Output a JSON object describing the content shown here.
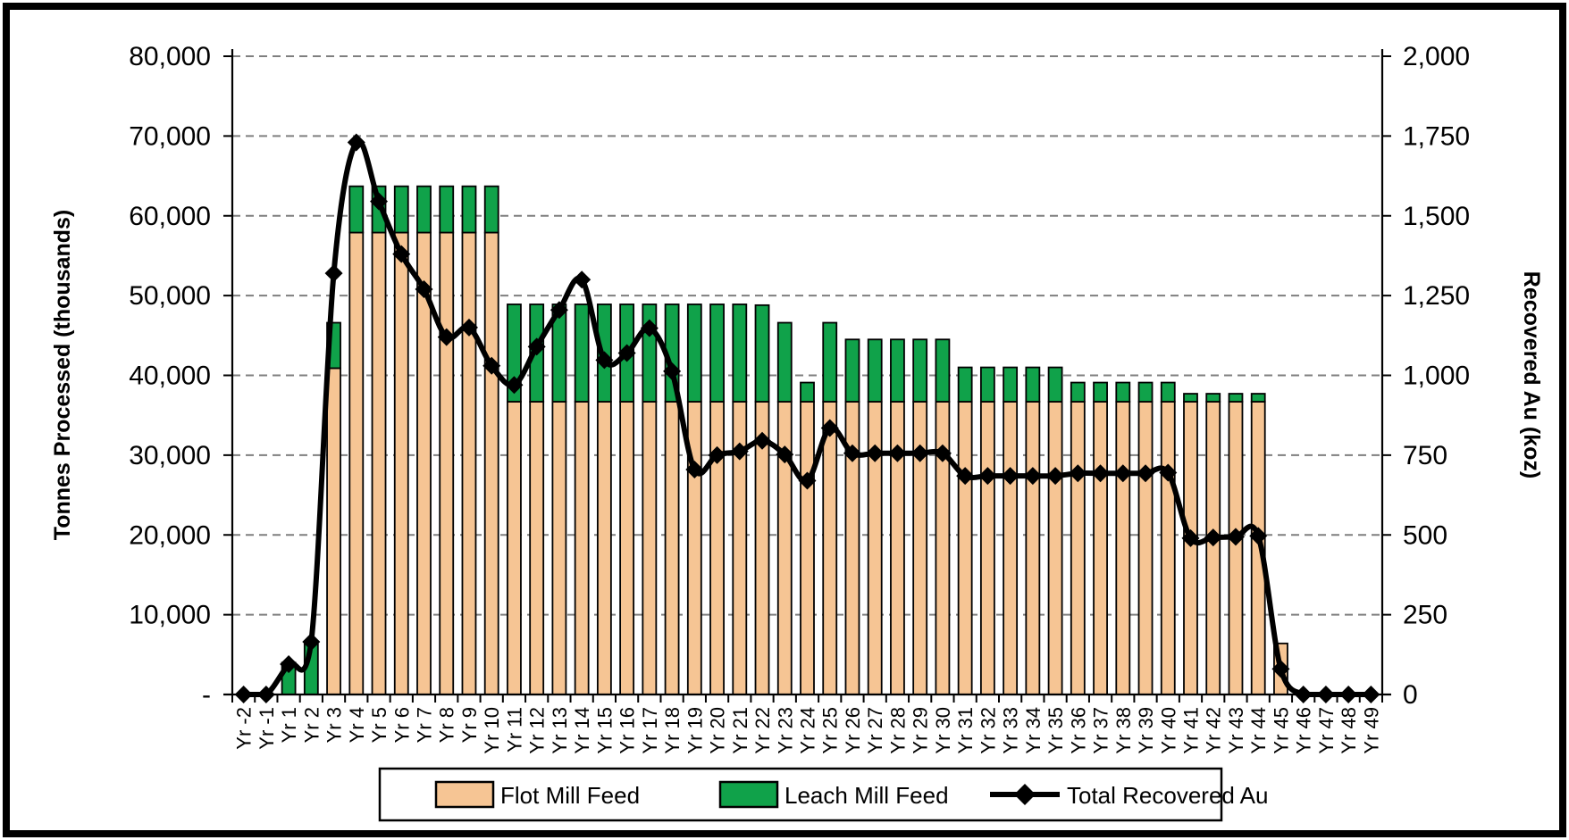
{
  "chart_data": {
    "type": "bar",
    "subtype": "stacked-bar-with-secondary-axis-line",
    "title": "",
    "categories": [
      "Yr -2",
      "Yr -1",
      "Yr 1",
      "Yr 2",
      "Yr 3",
      "Yr 4",
      "Yr 5",
      "Yr 6",
      "Yr 7",
      "Yr 8",
      "Yr 9",
      "Yr 10",
      "Yr 11",
      "Yr 12",
      "Yr 13",
      "Yr 14",
      "Yr 15",
      "Yr 16",
      "Yr 17",
      "Yr 18",
      "Yr 19",
      "Yr 20",
      "Yr 21",
      "Yr 22",
      "Yr 23",
      "Yr 24",
      "Yr 25",
      "Yr 26",
      "Yr 27",
      "Yr 28",
      "Yr 29",
      "Yr 30",
      "Yr 31",
      "Yr 32",
      "Yr 33",
      "Yr 34",
      "Yr 35",
      "Yr 36",
      "Yr 37",
      "Yr 38",
      "Yr 39",
      "Yr 40",
      "Yr 41",
      "Yr 42",
      "Yr 43",
      "Yr 44",
      "Yr 45",
      "Yr 46",
      "Yr 47",
      "Yr 48",
      "Yr 49"
    ],
    "series": [
      {
        "name": "Flot Mill Feed",
        "type": "bar-stack-bottom",
        "color": "#F6C594",
        "values": [
          0,
          0,
          0,
          0,
          40900,
          57900,
          57900,
          57900,
          57900,
          57900,
          57900,
          57900,
          36700,
          36700,
          36700,
          36700,
          36700,
          36700,
          36700,
          36700,
          36700,
          36700,
          36700,
          36700,
          36700,
          36700,
          36700,
          36700,
          36700,
          36700,
          36700,
          36700,
          36700,
          36700,
          36700,
          36700,
          36700,
          36700,
          36700,
          36700,
          36700,
          36700,
          36700,
          36700,
          36700,
          36700,
          6400,
          0,
          0,
          0,
          0
        ]
      },
      {
        "name": "Leach Mill Feed",
        "type": "bar-stack-top",
        "color": "#10A24A",
        "values": [
          0,
          0,
          4000,
          6300,
          5700,
          5800,
          5800,
          5800,
          5800,
          5800,
          5800,
          5800,
          12200,
          12200,
          12200,
          12200,
          12200,
          12200,
          12200,
          12200,
          12200,
          12200,
          12200,
          12100,
          9900,
          2400,
          9900,
          7800,
          7800,
          7800,
          7800,
          7800,
          4300,
          4300,
          4300,
          4300,
          4300,
          2400,
          2400,
          2400,
          2400,
          2400,
          1000,
          1000,
          1000,
          1000,
          0,
          0,
          0,
          0,
          0
        ]
      },
      {
        "name": "Total Recovered Au",
        "type": "line",
        "axis": "right",
        "color": "#000000",
        "marker": "diamond",
        "values": [
          0,
          0,
          95,
          165,
          1320,
          1730,
          1545,
          1380,
          1270,
          1120,
          1150,
          1030,
          970,
          1090,
          1205,
          1300,
          1048,
          1070,
          1148,
          1013,
          705,
          750,
          762,
          795,
          752,
          670,
          835,
          756,
          756,
          756,
          756,
          756,
          685,
          685,
          685,
          685,
          685,
          693,
          693,
          693,
          693,
          695,
          490,
          492,
          494,
          497,
          80,
          0,
          0,
          0,
          0
        ]
      }
    ],
    "left_axis": {
      "label": "Tonnes Processed (thousands)",
      "min": 0,
      "max": 80000,
      "tick_step": 10000,
      "tick_labels": [
        "80,000",
        "70,000",
        "60,000",
        "50,000",
        "40,000",
        "30,000",
        "20,000",
        "10,000",
        "-"
      ]
    },
    "right_axis": {
      "label": "Recovered Au (koz)",
      "min": 0,
      "max": 2000,
      "tick_step": 250,
      "tick_labels": [
        "2,000",
        "1,750",
        "1,500",
        "1,250",
        "1,000",
        "750",
        "500",
        "250",
        "0"
      ]
    },
    "grid": "horizontal dashed gray",
    "grid_color": "#7F7F7F",
    "legend_position": "bottom",
    "legend": {
      "flot_label": "Flot Mill Feed",
      "leach_label": "Leach Mill Feed",
      "line_label": "Total Recovered Au"
    }
  }
}
